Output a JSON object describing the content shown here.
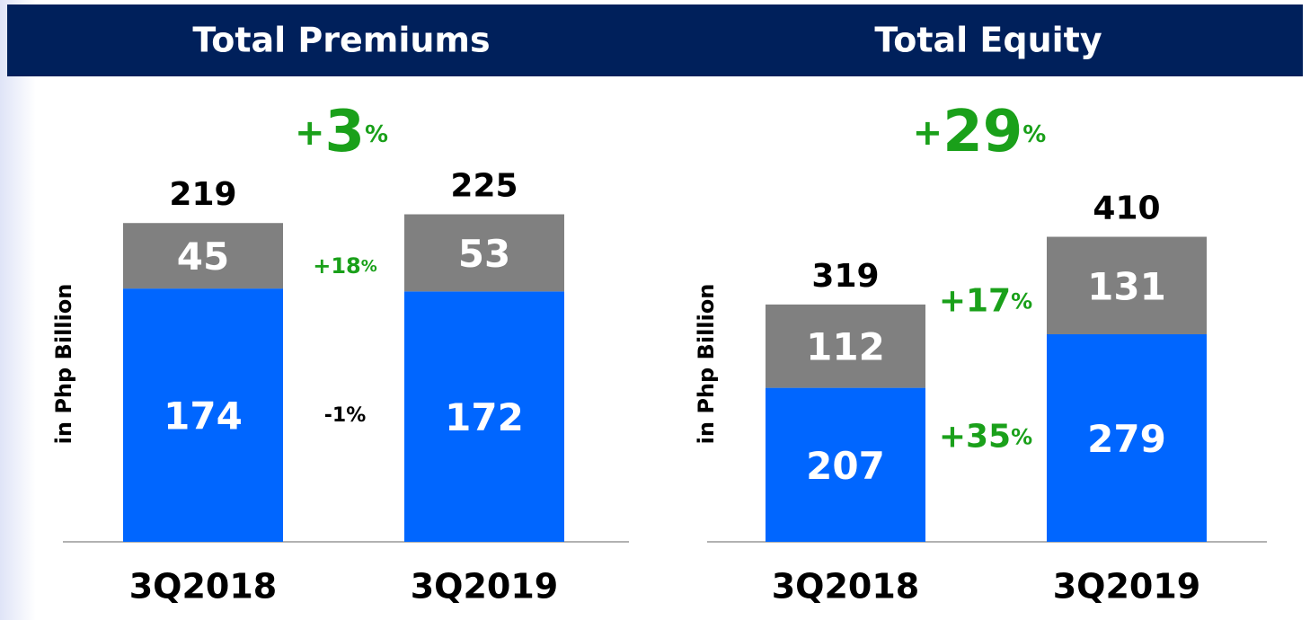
{
  "chart_data": [
    {
      "type": "stacked_bar",
      "title": "Total Premiums",
      "ylabel": "in Php Billion",
      "categories": [
        "3Q2018",
        "3Q2019"
      ],
      "series": [
        {
          "color": "#0066ff",
          "values": [
            174,
            172
          ]
        },
        {
          "color": "#808080",
          "values": [
            45,
            53
          ]
        }
      ],
      "totals": [
        219,
        225
      ],
      "growth": "+3%",
      "series_growth": [
        "-1%",
        "+18%"
      ]
    },
    {
      "type": "stacked_bar",
      "title": "Total Equity",
      "ylabel": "in Php Billion",
      "categories": [
        "3Q2018",
        "3Q2019"
      ],
      "series": [
        {
          "color": "#0066ff",
          "values": [
            207,
            279
          ]
        },
        {
          "color": "#808080",
          "values": [
            112,
            131
          ]
        }
      ],
      "totals": [
        319,
        410
      ],
      "growth": "+29%",
      "series_growth": [
        "+35%",
        "+17%"
      ]
    }
  ]
}
